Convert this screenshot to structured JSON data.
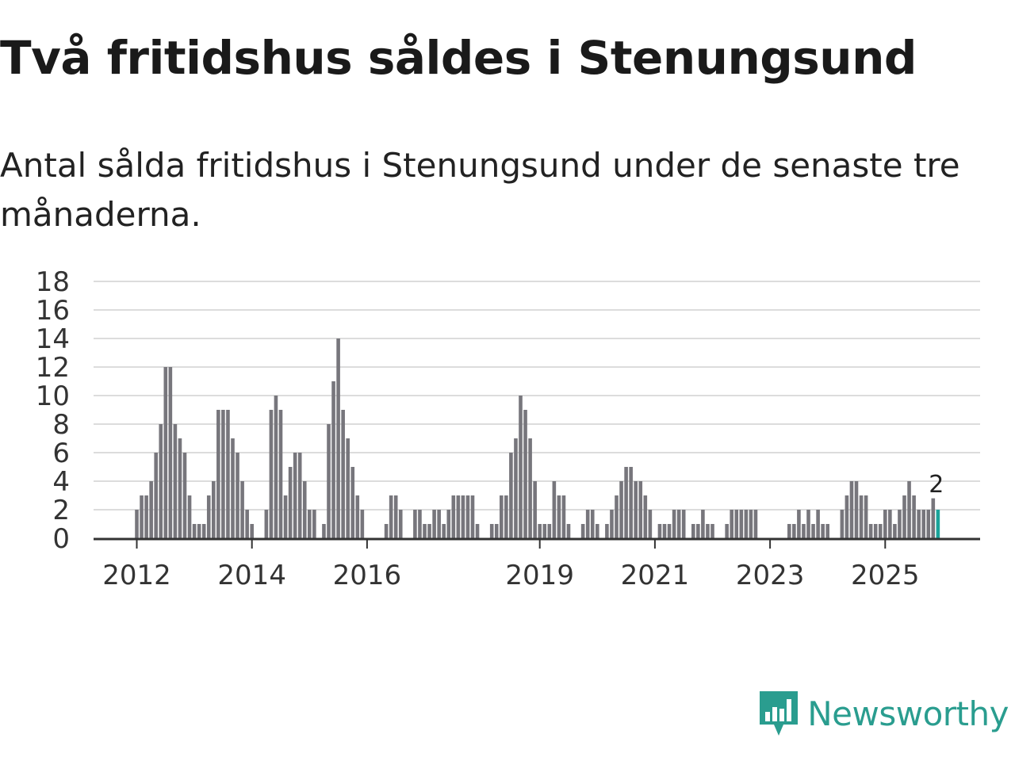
{
  "header": {
    "title": "Två fritidshus såldes i Stenungsund",
    "subtitle": "Antal sålda fritidshus i Stenungsund under de senaste tre månaderna."
  },
  "brand": {
    "name": "Newsworthy",
    "logo_icon": "bar-chart-speech-bubble-icon",
    "color": "#2a9d8f"
  },
  "colors": {
    "bar": "#77767c",
    "highlight": "#1aa39a",
    "grid": "#dcdcdc",
    "axis": "#333333"
  },
  "chart_data": {
    "type": "bar",
    "title": "Två fritidshus såldes i Stenungsund",
    "xlabel": "",
    "ylabel": "",
    "ylim": [
      0,
      18
    ],
    "yticks": [
      0,
      2,
      4,
      6,
      8,
      10,
      12,
      14,
      16,
      18
    ],
    "xticks": [
      {
        "label": "2012",
        "index": 0
      },
      {
        "label": "2014",
        "index": 24
      },
      {
        "label": "2016",
        "index": 48
      },
      {
        "label": "2019",
        "index": 84
      },
      {
        "label": "2021",
        "index": 108
      },
      {
        "label": "2023",
        "index": 132
      },
      {
        "label": "2025",
        "index": 156
      }
    ],
    "last_value_label": "2",
    "highlight_last": true,
    "values": [
      2,
      3,
      3,
      4,
      6,
      8,
      12,
      12,
      8,
      7,
      6,
      3,
      1,
      1,
      1,
      3,
      4,
      9,
      9,
      9,
      7,
      6,
      4,
      2,
      1,
      0,
      0,
      2,
      9,
      10,
      9,
      3,
      5,
      6,
      6,
      4,
      2,
      2,
      0,
      1,
      8,
      11,
      14,
      9,
      7,
      5,
      3,
      2,
      0,
      0,
      0,
      0,
      1,
      3,
      3,
      2,
      0,
      0,
      2,
      2,
      1,
      1,
      2,
      2,
      1,
      2,
      3,
      3,
      3,
      3,
      3,
      1,
      0,
      0,
      1,
      1,
      3,
      3,
      6,
      7,
      10,
      9,
      7,
      4,
      1,
      1,
      1,
      4,
      3,
      3,
      1,
      0,
      0,
      1,
      2,
      2,
      1,
      0,
      1,
      2,
      3,
      4,
      5,
      5,
      4,
      4,
      3,
      2,
      0,
      1,
      1,
      1,
      2,
      2,
      2,
      0,
      1,
      1,
      2,
      1,
      1,
      0,
      0,
      1,
      2,
      2,
      2,
      2,
      2,
      2,
      0,
      0,
      0,
      0,
      0,
      0,
      1,
      1,
      2,
      1,
      2,
      1,
      2,
      1,
      1,
      0,
      0,
      2,
      3,
      4,
      4,
      3,
      3,
      1,
      1,
      1,
      2,
      2,
      1,
      2,
      3,
      4,
      3,
      2,
      2,
      2,
      2.8,
      2
    ]
  }
}
